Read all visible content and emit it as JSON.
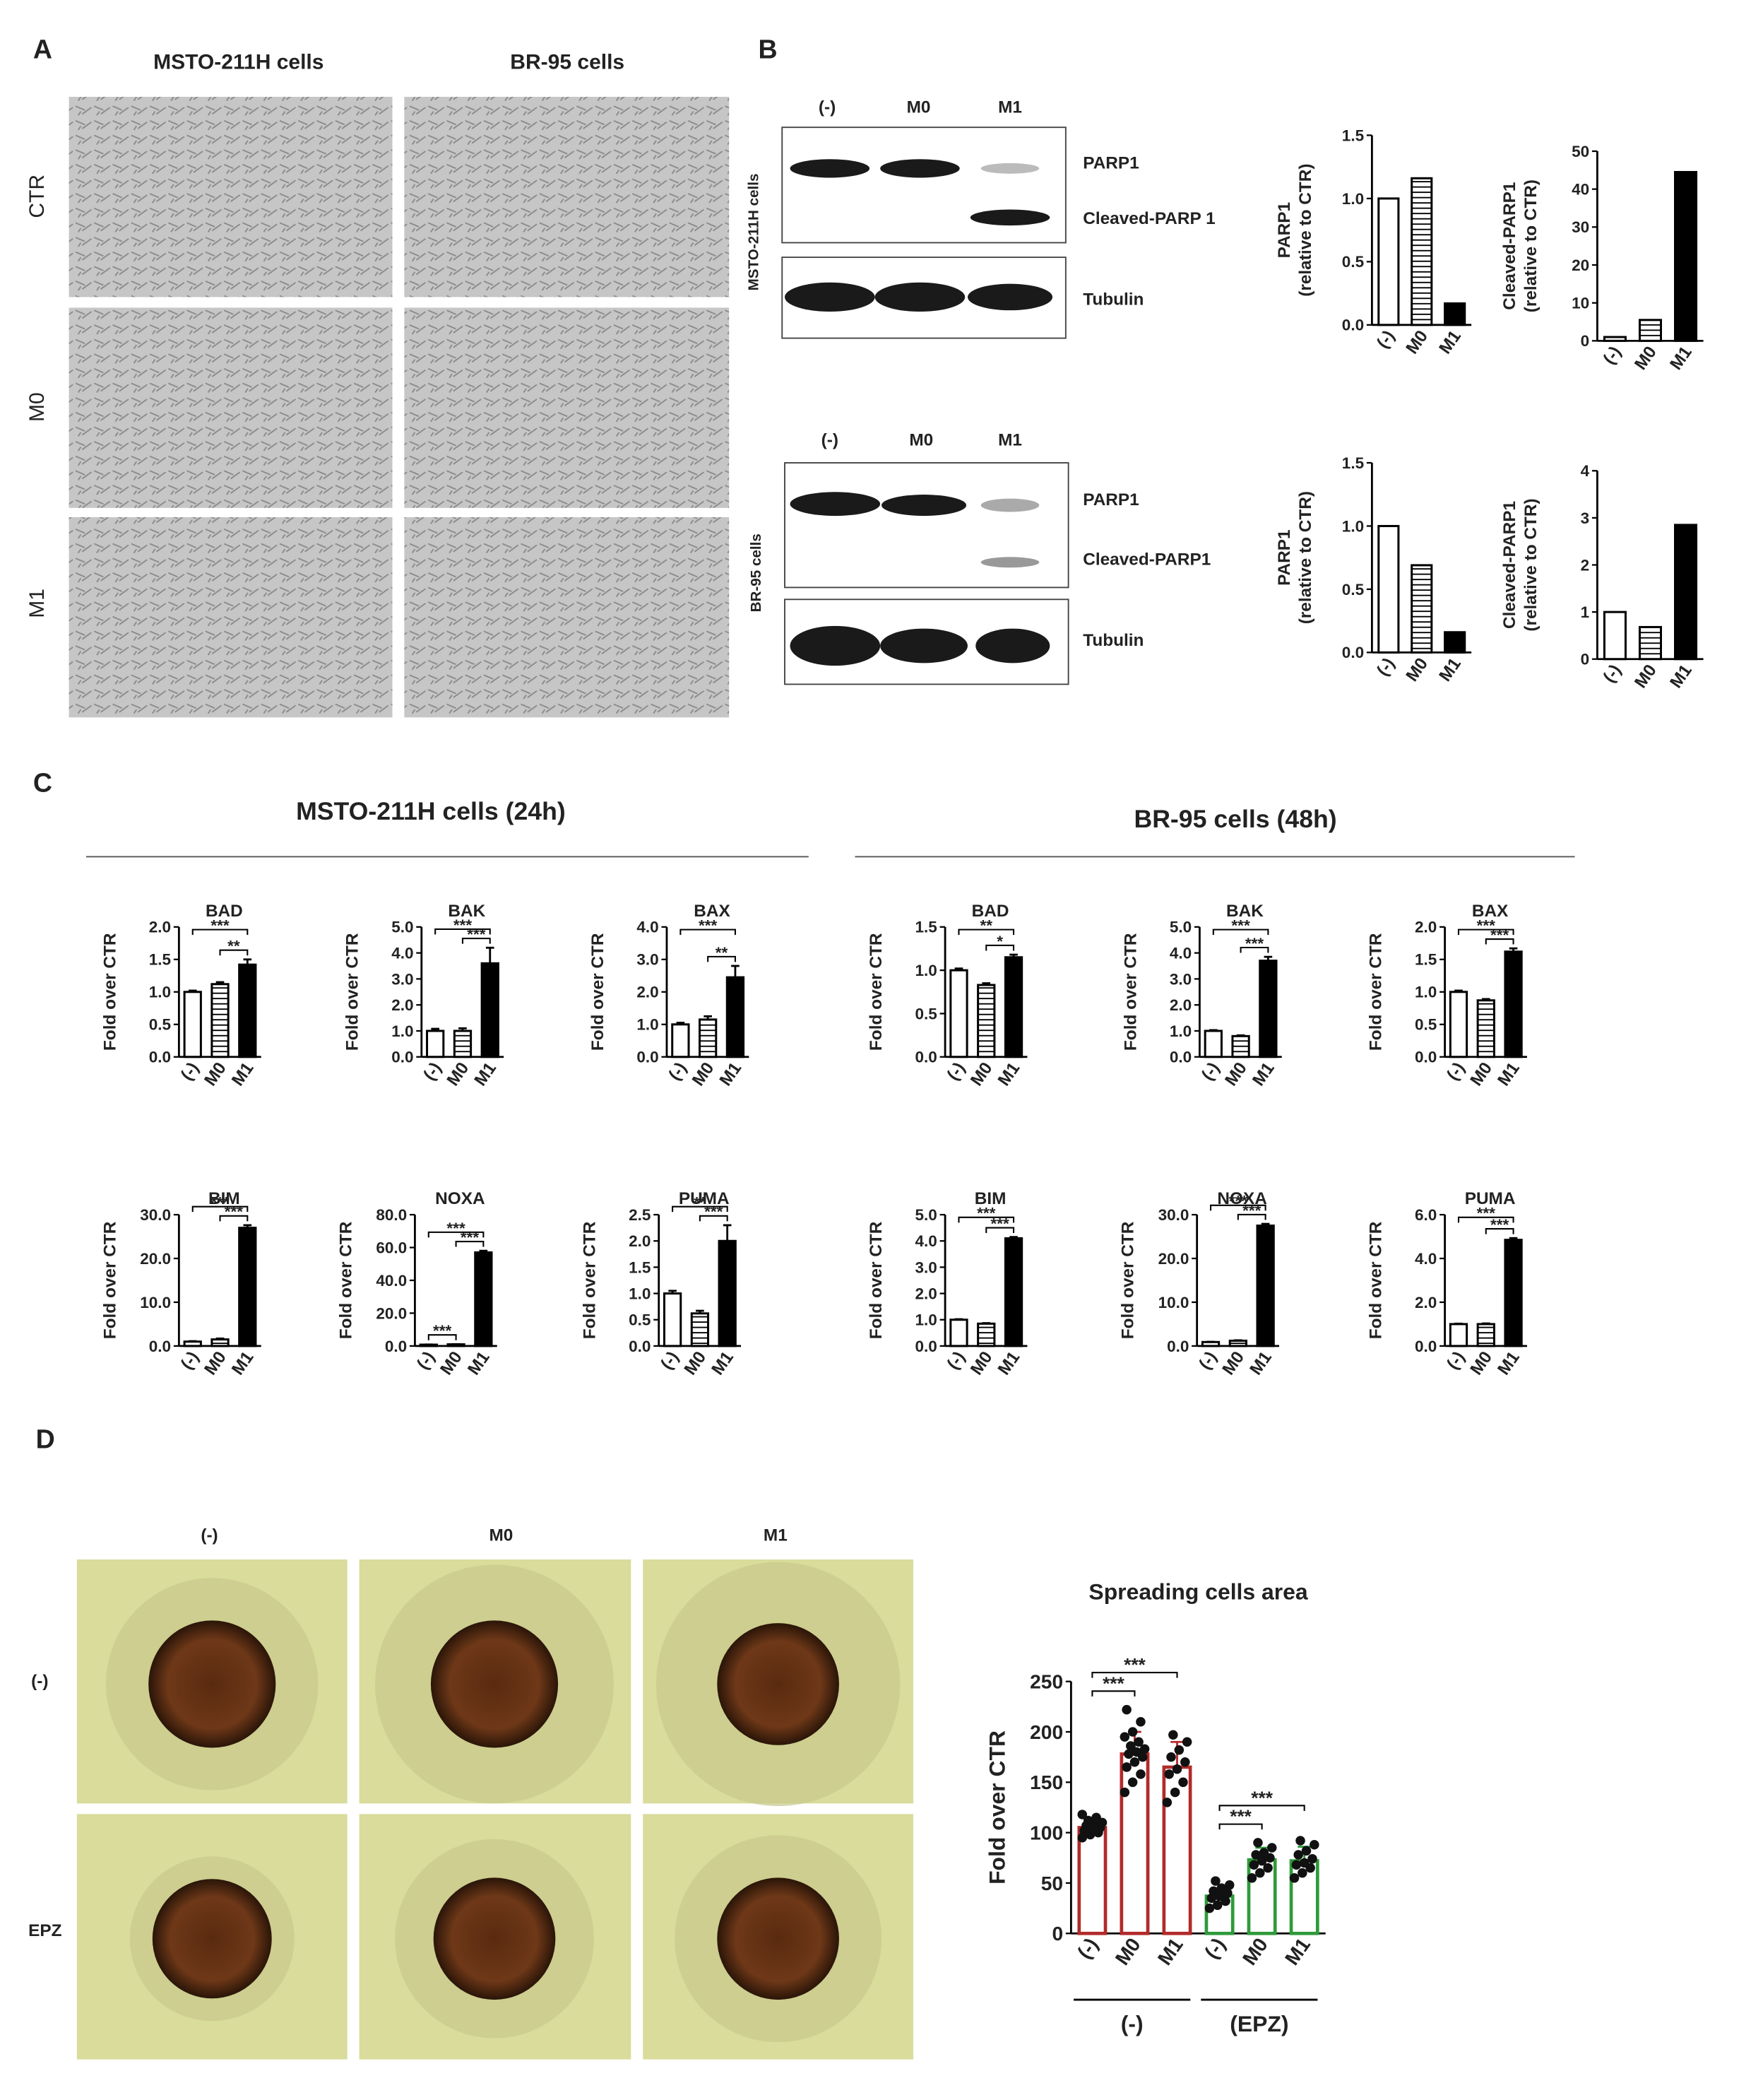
{
  "panels": {
    "a": {
      "letter": "A",
      "columns": [
        "MSTO-211H cells",
        "BR-95 cells"
      ],
      "rows": [
        "CTR",
        "M0",
        "M1"
      ]
    },
    "b": {
      "letter": "B",
      "msto": {
        "lanes": [
          "(-)",
          "M0",
          "M1"
        ],
        "cell_label": "MSTO-211H cells",
        "bands": [
          "PARP1",
          "Cleaved-PARP 1",
          "Tubulin"
        ]
      },
      "br": {
        "lanes": [
          "(-)",
          "M0",
          "M1"
        ],
        "cell_label": "BR-95  cells",
        "bands": [
          "PARP1",
          "Cleaved-PARP1",
          "Tubulin"
        ]
      }
    },
    "c": {
      "letter": "C",
      "headings": [
        "MSTO-211H cells (24h)",
        "BR-95 cells (48h)"
      ]
    },
    "d": {
      "letter": "D",
      "columns": [
        "(-)",
        "M0",
        "M1"
      ],
      "rows": [
        "(-)",
        "EPZ"
      ]
    }
  },
  "chart_data": [
    {
      "type": "bar",
      "y_label": [
        "PARP1",
        "(relative to CTR)"
      ],
      "categories": [
        "(-)",
        "M0",
        "M1"
      ],
      "values": [
        1.0,
        1.16,
        0.17
      ],
      "bar_styles": [
        "open",
        "striped",
        "solid"
      ],
      "ylim": [
        0,
        1.5
      ],
      "yticks": [
        {
          "value": 0,
          "label": "0.0"
        },
        0.5,
        {
          "value": 1,
          "label": "1.0"
        },
        1.5
      ]
    },
    {
      "type": "bar",
      "y_label": [
        "Cleaved-PARP1",
        "(relative to CTR)"
      ],
      "categories": [
        "(-)",
        "M0",
        "M1"
      ],
      "values": [
        1.0,
        5.5,
        44.5
      ],
      "bar_styles": [
        "open",
        "striped",
        "solid"
      ],
      "ylim": [
        0,
        50
      ],
      "yticks": [
        0,
        10,
        20,
        30,
        40,
        50
      ]
    },
    {
      "type": "bar",
      "y_label": [
        "PARP1",
        "(relative to CTR)"
      ],
      "categories": [
        "(-)",
        "M0",
        "M1"
      ],
      "values": [
        1.0,
        0.69,
        0.16
      ],
      "bar_styles": [
        "open",
        "striped",
        "solid"
      ],
      "ylim": [
        0,
        1.5
      ],
      "yticks": [
        {
          "value": 0,
          "label": "0.0"
        },
        0.5,
        {
          "value": 1,
          "label": "1.0"
        },
        1.5
      ]
    },
    {
      "type": "bar",
      "y_label": [
        "Cleaved-PARP1",
        "(relative to CTR)"
      ],
      "categories": [
        "(-)",
        "M0",
        "M1"
      ],
      "values": [
        1.0,
        0.68,
        2.85
      ],
      "bar_styles": [
        "open",
        "striped",
        "solid"
      ],
      "ylim": [
        0,
        4
      ],
      "yticks": [
        0,
        1,
        2,
        3,
        4
      ]
    },
    {
      "type": "bar",
      "title": "BAD",
      "y_label": [
        "Fold over CTR"
      ],
      "categories": [
        "(-)",
        "M0",
        "M1"
      ],
      "values": [
        1.0,
        1.12,
        1.42
      ],
      "errors": [
        0.02,
        0.03,
        0.08
      ],
      "bar_styles": [
        "open",
        "striped",
        "solid"
      ],
      "ylim": [
        0,
        2
      ],
      "yticks": [
        {
          "value": 0,
          "label": "0.0"
        },
        0.5,
        {
          "value": 1,
          "label": "1.0"
        },
        1.5,
        {
          "value": 2,
          "label": "2.0"
        }
      ],
      "brackets": [
        {
          "from": 0,
          "to": 2,
          "label": "***"
        },
        {
          "from": 1,
          "to": 2,
          "label": "**"
        }
      ]
    },
    {
      "type": "bar",
      "title": "BAK",
      "y_label": [
        "Fold over CTR"
      ],
      "categories": [
        "(-)",
        "M0",
        "M1"
      ],
      "values": [
        1.0,
        1.0,
        3.6
      ],
      "errors": [
        0.08,
        0.1,
        0.6
      ],
      "bar_styles": [
        "open",
        "striped",
        "solid"
      ],
      "ylim": [
        0,
        5
      ],
      "yticks": [
        {
          "value": 0,
          "label": "0.0"
        },
        {
          "value": 1,
          "label": "1.0"
        },
        {
          "value": 2,
          "label": "2.0"
        },
        {
          "value": 3,
          "label": "3.0"
        },
        {
          "value": 4,
          "label": "4.0"
        },
        {
          "value": 5,
          "label": "5.0"
        }
      ],
      "brackets": [
        {
          "from": 0,
          "to": 2,
          "label": "***"
        },
        {
          "from": 1,
          "to": 2,
          "label": "***"
        }
      ]
    },
    {
      "type": "bar",
      "title": "BAX",
      "y_label": [
        "Fold over CTR"
      ],
      "categories": [
        "(-)",
        "M0",
        "M1"
      ],
      "values": [
        1.0,
        1.15,
        2.45
      ],
      "errors": [
        0.05,
        0.1,
        0.35
      ],
      "bar_styles": [
        "open",
        "striped",
        "solid"
      ],
      "ylim": [
        0,
        4
      ],
      "yticks": [
        {
          "value": 0,
          "label": "0.0"
        },
        {
          "value": 1,
          "label": "1.0"
        },
        {
          "value": 2,
          "label": "2.0"
        },
        {
          "value": 3,
          "label": "3.0"
        },
        {
          "value": 4,
          "label": "4.0"
        }
      ],
      "brackets": [
        {
          "from": 0,
          "to": 2,
          "label": "***"
        },
        {
          "from": 1,
          "to": 2,
          "label": "**"
        }
      ]
    },
    {
      "type": "bar",
      "title": "BAD",
      "y_label": [
        "Fold over CTR"
      ],
      "categories": [
        "(-)",
        "M0",
        "M1"
      ],
      "values": [
        1.0,
        0.83,
        1.15
      ],
      "errors": [
        0.02,
        0.02,
        0.03
      ],
      "bar_styles": [
        "open",
        "striped",
        "solid"
      ],
      "ylim": [
        0,
        1.5
      ],
      "yticks": [
        {
          "value": 0,
          "label": "0.0"
        },
        0.5,
        {
          "value": 1,
          "label": "1.0"
        },
        1.5
      ],
      "brackets": [
        {
          "from": 0,
          "to": 2,
          "label": "**"
        },
        {
          "from": 1,
          "to": 2,
          "label": "*"
        }
      ]
    },
    {
      "type": "bar",
      "title": "BAK",
      "y_label": [
        "Fold over CTR"
      ],
      "categories": [
        "(-)",
        "M0",
        "M1"
      ],
      "values": [
        1.0,
        0.8,
        3.7
      ],
      "errors": [
        0.03,
        0.03,
        0.15
      ],
      "bar_styles": [
        "open",
        "striped",
        "solid"
      ],
      "ylim": [
        0,
        5
      ],
      "yticks": [
        {
          "value": 0,
          "label": "0.0"
        },
        {
          "value": 1,
          "label": "1.0"
        },
        {
          "value": 2,
          "label": "2.0"
        },
        {
          "value": 3,
          "label": "3.0"
        },
        {
          "value": 4,
          "label": "4.0"
        },
        {
          "value": 5,
          "label": "5.0"
        }
      ],
      "brackets": [
        {
          "from": 0,
          "to": 2,
          "label": "***"
        },
        {
          "from": 1,
          "to": 2,
          "label": "***"
        }
      ]
    },
    {
      "type": "bar",
      "title": "BAX",
      "y_label": [
        "Fold over CTR"
      ],
      "categories": [
        "(-)",
        "M0",
        "M1"
      ],
      "values": [
        1.0,
        0.87,
        1.62
      ],
      "errors": [
        0.02,
        0.02,
        0.05
      ],
      "bar_styles": [
        "open",
        "striped",
        "solid"
      ],
      "ylim": [
        0,
        2
      ],
      "yticks": [
        {
          "value": 0,
          "label": "0.0"
        },
        0.5,
        {
          "value": 1,
          "label": "1.0"
        },
        1.5,
        {
          "value": 2,
          "label": "2.0"
        }
      ],
      "brackets": [
        {
          "from": 0,
          "to": 2,
          "label": "***"
        },
        {
          "from": 1,
          "to": 2,
          "label": "***"
        }
      ]
    },
    {
      "type": "bar",
      "title": "BIM",
      "y_label": [
        "Fold over CTR"
      ],
      "categories": [
        "(-)",
        "M0",
        "M1"
      ],
      "values": [
        1.0,
        1.5,
        27
      ],
      "errors": [
        0.1,
        0.2,
        0.6
      ],
      "bar_styles": [
        "open",
        "striped",
        "solid"
      ],
      "ylim": [
        0,
        30
      ],
      "yticks": [
        {
          "value": 0,
          "label": "0.0"
        },
        {
          "value": 10,
          "label": "10.0"
        },
        {
          "value": 20,
          "label": "20.0"
        },
        {
          "value": 30,
          "label": "30.0"
        }
      ],
      "brackets": [
        {
          "from": 0,
          "to": 2,
          "label": "***"
        },
        {
          "from": 1,
          "to": 2,
          "label": "***"
        }
      ]
    },
    {
      "type": "bar",
      "title": "NOXA",
      "y_label": [
        "Fold over CTR"
      ],
      "categories": [
        "(-)",
        "M0",
        "M1"
      ],
      "values": [
        0.8,
        1.0,
        57
      ],
      "errors": [
        0.1,
        0.1,
        1.0
      ],
      "bar_styles": [
        "open",
        "striped",
        "solid"
      ],
      "ylim": [
        0,
        80
      ],
      "yticks": [
        {
          "value": 0,
          "label": "0.0"
        },
        {
          "value": 20,
          "label": "20.0"
        },
        {
          "value": 40,
          "label": "40.0"
        },
        {
          "value": 60,
          "label": "60.0"
        },
        {
          "value": 80,
          "label": "80.0"
        }
      ],
      "brackets": [
        {
          "from": 0,
          "to": 1,
          "label": "***"
        },
        {
          "from": 0,
          "to": 2,
          "label": "***"
        },
        {
          "from": 1,
          "to": 2,
          "label": "***"
        }
      ]
    },
    {
      "type": "bar",
      "title": "PUMA",
      "y_label": [
        "Fold over CTR"
      ],
      "categories": [
        "(-)",
        "M0",
        "M1"
      ],
      "values": [
        1.0,
        0.62,
        2.0
      ],
      "errors": [
        0.05,
        0.05,
        0.3
      ],
      "bar_styles": [
        "open",
        "striped",
        "solid"
      ],
      "ylim": [
        0,
        2.5
      ],
      "yticks": [
        {
          "value": 0,
          "label": "0.0"
        },
        0.5,
        {
          "value": 1,
          "label": "1.0"
        },
        1.5,
        {
          "value": 2,
          "label": "2.0"
        },
        2.5
      ],
      "brackets": [
        {
          "from": 0,
          "to": 2,
          "label": "**"
        },
        {
          "from": 1,
          "to": 2,
          "label": "***"
        }
      ]
    },
    {
      "type": "bar",
      "title": "BIM",
      "y_label": [
        "Fold over CTR"
      ],
      "categories": [
        "(-)",
        "M0",
        "M1"
      ],
      "values": [
        1.0,
        0.85,
        4.1
      ],
      "errors": [
        0.02,
        0.02,
        0.05
      ],
      "bar_styles": [
        "open",
        "striped",
        "solid"
      ],
      "ylim": [
        0,
        5
      ],
      "yticks": [
        {
          "value": 0,
          "label": "0.0"
        },
        {
          "value": 1,
          "label": "1.0"
        },
        {
          "value": 2,
          "label": "2.0"
        },
        {
          "value": 3,
          "label": "3.0"
        },
        {
          "value": 4,
          "label": "4.0"
        },
        {
          "value": 5,
          "label": "5.0"
        }
      ],
      "brackets": [
        {
          "from": 0,
          "to": 2,
          "label": "***"
        },
        {
          "from": 1,
          "to": 2,
          "label": "***"
        }
      ]
    },
    {
      "type": "bar",
      "title": "NOXA",
      "y_label": [
        "Fold over CTR"
      ],
      "categories": [
        "(-)",
        "M0",
        "M1"
      ],
      "values": [
        0.9,
        1.2,
        27.5
      ],
      "errors": [
        0.05,
        0.1,
        0.4
      ],
      "bar_styles": [
        "open",
        "striped",
        "solid"
      ],
      "ylim": [
        0,
        30
      ],
      "yticks": [
        {
          "value": 0,
          "label": "0.0"
        },
        {
          "value": 10,
          "label": "10.0"
        },
        {
          "value": 20,
          "label": "20.0"
        },
        {
          "value": 30,
          "label": "30.0"
        }
      ],
      "brackets": [
        {
          "from": 0,
          "to": 2,
          "label": "***"
        },
        {
          "from": 1,
          "to": 2,
          "label": "***"
        }
      ]
    },
    {
      "type": "bar",
      "title": "PUMA",
      "y_label": [
        "Fold over CTR"
      ],
      "categories": [
        "(-)",
        "M0",
        "M1"
      ],
      "values": [
        1.0,
        1.0,
        4.85
      ],
      "errors": [
        0.02,
        0.03,
        0.08
      ],
      "bar_styles": [
        "open",
        "striped",
        "solid"
      ],
      "ylim": [
        0,
        6
      ],
      "yticks": [
        {
          "value": 0,
          "label": "0.0"
        },
        {
          "value": 2,
          "label": "2.0"
        },
        {
          "value": 4,
          "label": "4.0"
        },
        {
          "value": 6,
          "label": "6.0"
        }
      ],
      "brackets": [
        {
          "from": 0,
          "to": 2,
          "label": "***"
        },
        {
          "from": 1,
          "to": 2,
          "label": "***"
        }
      ]
    },
    {
      "type": "bar",
      "title": "Spreading cells area",
      "y_label": [
        "Fold over CTR"
      ],
      "categories": [
        "(-)",
        "M0",
        "M1",
        "(-)",
        "M0",
        "M1"
      ],
      "values": [
        105,
        178,
        165,
        37,
        73,
        72
      ],
      "errors": [
        8,
        22,
        25,
        8,
        12,
        14
      ],
      "bar_styles": [
        "outline",
        "outline",
        "outline",
        "outline",
        "outline",
        "outline"
      ],
      "colors": [
        "#b22a2a",
        "#b22a2a",
        "#b22a2a",
        "#2e9a3a",
        "#2e9a3a",
        "#2e9a3a"
      ],
      "points": [
        [
          95,
          98,
          100,
          102,
          104,
          105,
          107,
          108,
          110,
          112,
          115,
          118
        ],
        [
          140,
          150,
          158,
          165,
          170,
          175,
          178,
          180,
          183,
          186,
          190,
          195,
          200,
          210,
          222
        ],
        [
          130,
          140,
          150,
          158,
          163,
          170,
          175,
          182,
          190,
          197
        ],
        [
          25,
          28,
          32,
          35,
          37,
          40,
          42,
          45,
          48,
          52
        ],
        [
          55,
          60,
          65,
          68,
          72,
          75,
          78,
          80,
          85,
          90
        ],
        [
          55,
          60,
          65,
          68,
          70,
          74,
          78,
          82,
          88,
          92
        ]
      ],
      "ylim": [
        0,
        250
      ],
      "yticks": [
        0,
        50,
        100,
        150,
        200,
        250
      ],
      "brackets": [
        {
          "from": 0,
          "to": 1,
          "label": "***"
        },
        {
          "from": 0,
          "to": 2,
          "label": "***"
        },
        {
          "from": 3,
          "to": 4,
          "label": "***"
        },
        {
          "from": 3,
          "to": 5,
          "label": "***"
        }
      ],
      "groups": [
        {
          "label": "(-)",
          "from": 0,
          "to": 2
        },
        {
          "label": "(EPZ)",
          "from": 3,
          "to": 5
        }
      ]
    }
  ]
}
